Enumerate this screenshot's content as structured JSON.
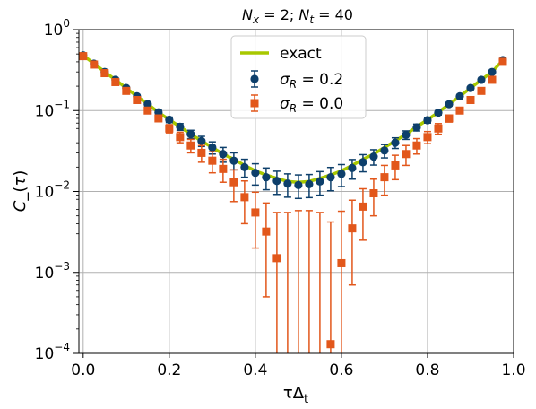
{
  "chart_data": {
    "type": "scatter",
    "title": "N_x = 2; N_t = 40",
    "title_parts": {
      "sym1": "N",
      "sub1": "x",
      "mid": " = 2; ",
      "sym2": "N",
      "sub2": "t",
      "end": " = 40"
    },
    "xlabel": "τΔ",
    "xlabel_sub": "t",
    "ylabel": "C_−(τ)",
    "xlim": [
      -0.01,
      1.0
    ],
    "ylim": [
      0.0001,
      1
    ],
    "yscale": "log",
    "grid": true,
    "legend_position": "top-center",
    "xticks": [
      "0.0",
      "0.2",
      "0.4",
      "0.6",
      "0.8",
      "1.0"
    ],
    "xtick_values": [
      0.0,
      0.2,
      0.4,
      0.6,
      0.8,
      1.0
    ],
    "yticks": [
      {
        "base": "10",
        "exp": "0",
        "value": 1
      },
      {
        "base": "10",
        "exp": "−1",
        "value": 0.1
      },
      {
        "base": "10",
        "exp": "−2",
        "value": 0.01
      },
      {
        "base": "10",
        "exp": "−3",
        "value": 0.001
      },
      {
        "base": "10",
        "exp": "−4",
        "value": 0.0001
      }
    ],
    "series": [
      {
        "name": "exact",
        "kind": "line",
        "color": "#a8c800",
        "x": [
          0.0,
          0.025,
          0.05,
          0.075,
          0.1,
          0.125,
          0.15,
          0.175,
          0.2,
          0.225,
          0.25,
          0.275,
          0.3,
          0.325,
          0.35,
          0.375,
          0.4,
          0.425,
          0.45,
          0.475,
          0.5,
          0.525,
          0.55,
          0.575,
          0.6,
          0.625,
          0.65,
          0.675,
          0.7,
          0.725,
          0.75,
          0.775,
          0.8,
          0.825,
          0.85,
          0.875,
          0.9,
          0.925,
          0.95,
          0.975
        ],
        "y": [
          0.48,
          0.38,
          0.3,
          0.24,
          0.19,
          0.15,
          0.12,
          0.095,
          0.077,
          0.063,
          0.051,
          0.042,
          0.035,
          0.029,
          0.025,
          0.021,
          0.018,
          0.016,
          0.0145,
          0.0133,
          0.013,
          0.0133,
          0.0145,
          0.016,
          0.018,
          0.021,
          0.025,
          0.029,
          0.035,
          0.042,
          0.051,
          0.063,
          0.077,
          0.095,
          0.12,
          0.15,
          0.19,
          0.24,
          0.3,
          0.42
        ]
      },
      {
        "name": "σ_R = 0.2",
        "label_parts": {
          "sym": "σ",
          "sub": "R",
          "val": " = 0.2"
        },
        "kind": "errorbar",
        "marker": "circle",
        "color": "#0d3f6b",
        "x": [
          0.0,
          0.025,
          0.05,
          0.075,
          0.1,
          0.125,
          0.15,
          0.175,
          0.2,
          0.225,
          0.25,
          0.275,
          0.3,
          0.325,
          0.35,
          0.375,
          0.4,
          0.425,
          0.45,
          0.475,
          0.5,
          0.525,
          0.55,
          0.575,
          0.6,
          0.625,
          0.65,
          0.675,
          0.7,
          0.725,
          0.75,
          0.775,
          0.8,
          0.825,
          0.85,
          0.875,
          0.9,
          0.925,
          0.95,
          0.975
        ],
        "y": [
          0.48,
          0.38,
          0.3,
          0.24,
          0.19,
          0.15,
          0.12,
          0.095,
          0.077,
          0.063,
          0.051,
          0.042,
          0.035,
          0.029,
          0.024,
          0.02,
          0.017,
          0.015,
          0.0135,
          0.0125,
          0.012,
          0.0123,
          0.0133,
          0.015,
          0.0165,
          0.0195,
          0.023,
          0.027,
          0.032,
          0.04,
          0.05,
          0.062,
          0.076,
          0.094,
          0.12,
          0.15,
          0.19,
          0.24,
          0.3,
          0.42
        ],
        "err_lo": [
          0.47,
          0.37,
          0.29,
          0.232,
          0.183,
          0.144,
          0.114,
          0.089,
          0.071,
          0.057,
          0.045,
          0.036,
          0.029,
          0.023,
          0.0185,
          0.015,
          0.012,
          0.0105,
          0.0092,
          0.0085,
          0.0082,
          0.0084,
          0.009,
          0.0102,
          0.0115,
          0.0142,
          0.0175,
          0.0212,
          0.026,
          0.034,
          0.044,
          0.056,
          0.07,
          0.088,
          0.114,
          0.144,
          0.183,
          0.232,
          0.29,
          0.41
        ],
        "err_hi": [
          0.49,
          0.39,
          0.31,
          0.248,
          0.197,
          0.156,
          0.126,
          0.101,
          0.083,
          0.069,
          0.057,
          0.048,
          0.041,
          0.035,
          0.03,
          0.025,
          0.022,
          0.0195,
          0.0178,
          0.0165,
          0.016,
          0.0162,
          0.0176,
          0.0198,
          0.0215,
          0.0248,
          0.0285,
          0.0328,
          0.038,
          0.046,
          0.056,
          0.068,
          0.082,
          0.1,
          0.126,
          0.156,
          0.197,
          0.248,
          0.31,
          0.43
        ]
      },
      {
        "name": "σ_R = 0.0",
        "label_parts": {
          "sym": "σ",
          "sub": "R",
          "val": " = 0.0"
        },
        "kind": "errorbar",
        "marker": "square",
        "color": "#e2571b",
        "x": [
          0.0,
          0.025,
          0.05,
          0.075,
          0.1,
          0.125,
          0.15,
          0.175,
          0.2,
          0.225,
          0.25,
          0.275,
          0.3,
          0.325,
          0.35,
          0.375,
          0.4,
          0.425,
          0.45,
          0.475,
          0.5,
          0.525,
          0.55,
          0.575,
          0.6,
          0.625,
          0.65,
          0.675,
          0.7,
          0.725,
          0.75,
          0.775,
          0.8,
          0.825,
          0.85,
          0.875,
          0.9,
          0.925,
          0.95,
          0.975
        ],
        "y": [
          0.47,
          0.37,
          0.29,
          0.225,
          0.175,
          0.135,
          0.1,
          0.08,
          0.06,
          0.047,
          0.037,
          0.03,
          0.024,
          0.019,
          0.013,
          0.0085,
          0.0055,
          0.0032,
          0.0015,
          null,
          null,
          null,
          null,
          0.00013,
          0.0013,
          0.0035,
          0.0065,
          0.0095,
          0.015,
          0.021,
          0.029,
          0.037,
          0.047,
          0.06,
          0.08,
          0.1,
          0.135,
          0.175,
          0.24,
          0.4
        ],
        "err_lo": [
          0.462,
          0.362,
          0.283,
          0.218,
          0.168,
          0.128,
          0.093,
          0.073,
          0.053,
          0.04,
          0.03,
          0.023,
          0.017,
          0.013,
          0.0075,
          0.004,
          0.002,
          0.0005,
          0.0001,
          0.0001,
          0.0001,
          0.0001,
          0.0001,
          0.0001,
          0.0001,
          0.0007,
          0.0025,
          0.005,
          0.009,
          0.014,
          0.021,
          0.029,
          0.039,
          0.051,
          0.072,
          0.093,
          0.128,
          0.168,
          0.232,
          0.392
        ],
        "err_hi": [
          0.478,
          0.378,
          0.298,
          0.232,
          0.182,
          0.142,
          0.108,
          0.087,
          0.067,
          0.054,
          0.044,
          0.037,
          0.031,
          0.025,
          0.0185,
          0.0135,
          0.0098,
          0.0072,
          0.0055,
          0.0055,
          0.0058,
          0.0058,
          0.0055,
          0.0042,
          0.0057,
          0.0078,
          0.0108,
          0.0142,
          0.021,
          0.028,
          0.037,
          0.045,
          0.055,
          0.069,
          0.088,
          0.107,
          0.142,
          0.182,
          0.248,
          0.408
        ]
      }
    ]
  }
}
